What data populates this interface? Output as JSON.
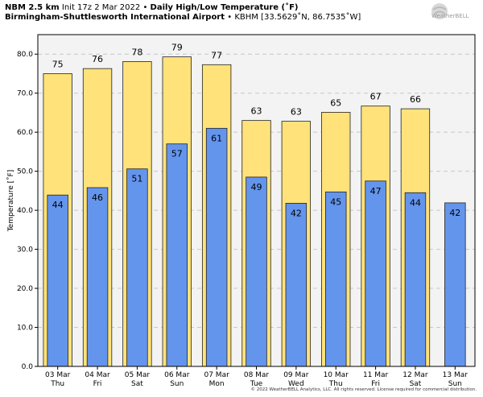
{
  "header": {
    "model": "NBM 2.5 km",
    "init": "Init 17z 2 Mar 2022",
    "sep": "•",
    "product": "Daily High/Low Temperature (˚F)",
    "location": "Birmingham-Shuttlesworth International Airport",
    "station": "KBHM [33.5629˚N, 86.7535˚W]"
  },
  "logo": {
    "text": "WeatherBELL"
  },
  "copyright": "© 2022 WeatherBELL Analytics, LLC. All rights reserved. License required for commercial distribution.",
  "colors": {
    "high": "#FFE27A",
    "low": "#6495ED",
    "plot_bg": "#F3F3F3",
    "edge": "#222222",
    "grid": "#c8c8c8"
  },
  "chart_data": {
    "type": "bar",
    "ylabel": "Temperature [˚F]",
    "ylim": [
      0,
      85
    ],
    "yticks": [
      "0.0",
      "10.0",
      "20.0",
      "30.0",
      "40.0",
      "50.0",
      "60.0",
      "70.0",
      "80.0"
    ],
    "grid": true,
    "categories": [
      {
        "date": "03 Mar",
        "day": "Thu"
      },
      {
        "date": "04 Mar",
        "day": "Fri"
      },
      {
        "date": "05 Mar",
        "day": "Sat"
      },
      {
        "date": "06 Mar",
        "day": "Sun"
      },
      {
        "date": "07 Mar",
        "day": "Mon"
      },
      {
        "date": "08 Mar",
        "day": "Tue"
      },
      {
        "date": "09 Mar",
        "day": "Wed"
      },
      {
        "date": "10 Mar",
        "day": "Thu"
      },
      {
        "date": "11 Mar",
        "day": "Fri"
      },
      {
        "date": "12 Mar",
        "day": "Sat"
      },
      {
        "date": "13 Mar",
        "day": "Sun"
      }
    ],
    "series": [
      {
        "key": "high",
        "values": [
          75,
          76.3,
          78.1,
          79.3,
          77.3,
          63,
          62.8,
          65.1,
          66.7,
          66,
          null
        ],
        "labels": [
          "75",
          "76",
          "78",
          "79",
          "77",
          "63",
          "63",
          "65",
          "67",
          "66",
          ""
        ]
      },
      {
        "key": "low",
        "values": [
          43.9,
          45.8,
          50.6,
          57,
          61,
          48.5,
          41.8,
          44.7,
          47.5,
          44.5,
          41.9
        ],
        "labels": [
          "44",
          "46",
          "51",
          "57",
          "61",
          "49",
          "42",
          "45",
          "47",
          "44",
          "42"
        ]
      }
    ]
  }
}
